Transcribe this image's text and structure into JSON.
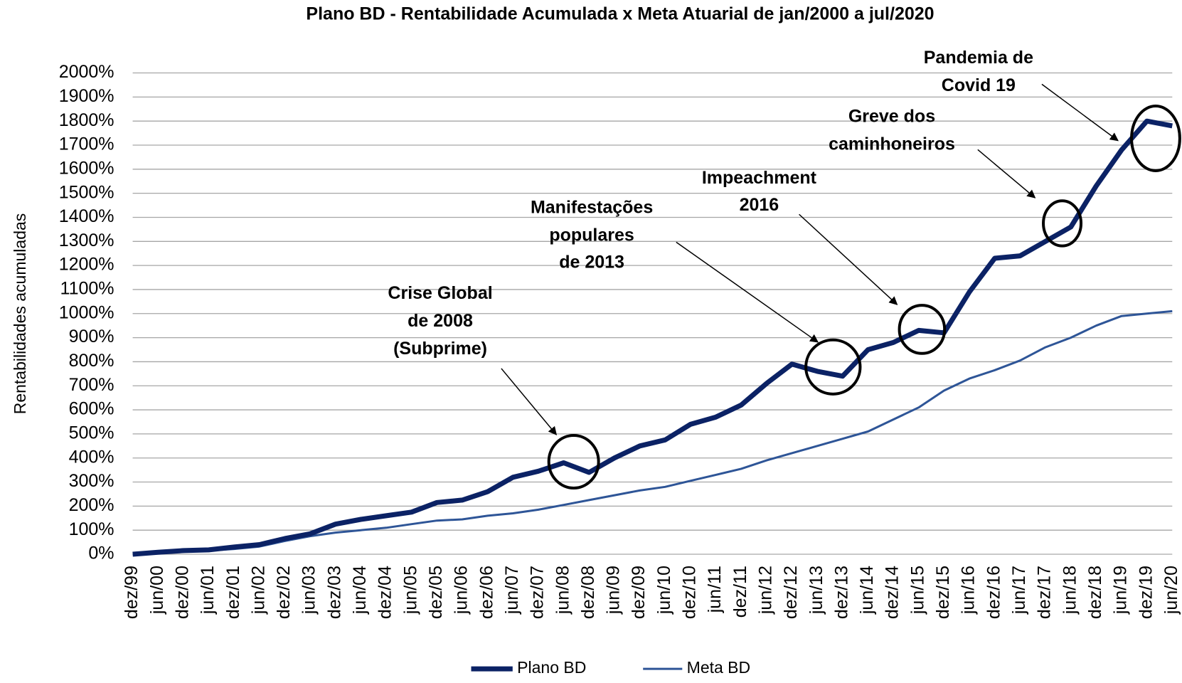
{
  "chart_data": {
    "type": "line",
    "title": "Plano BD - Rentabilidade Acumulada x Meta Atuarial de jan/2000 a jul/2020",
    "y_label": "Rentabilidades acumuladas",
    "categories": [
      "dez/99",
      "jun/00",
      "dez/00",
      "jun/01",
      "dez/01",
      "jun/02",
      "dez/02",
      "jun/03",
      "dez/03",
      "jun/04",
      "dez/04",
      "jun/05",
      "dez/05",
      "jun/06",
      "dez/06",
      "jun/07",
      "dez/07",
      "jun/08",
      "dez/08",
      "jun/09",
      "dez/09",
      "jun/10",
      "dez/10",
      "jun/11",
      "dez/11",
      "jun/12",
      "dez/12",
      "jun/13",
      "dez/13",
      "jun/14",
      "dez/14",
      "jun/15",
      "dez/15",
      "jun/16",
      "dez/16",
      "jun/17",
      "dez/17",
      "jun/18",
      "dez/18",
      "jun/19",
      "dez/19",
      "jun/20"
    ],
    "series": [
      {
        "name": "Plano BD",
        "color": "#0b2265",
        "width": 7,
        "values": [
          0,
          8,
          15,
          18,
          30,
          40,
          65,
          85,
          125,
          145,
          160,
          175,
          215,
          225,
          260,
          320,
          345,
          380,
          340,
          400,
          450,
          475,
          540,
          570,
          620,
          710,
          790,
          760,
          740,
          850,
          880,
          930,
          920,
          1090,
          1230,
          1240,
          1300,
          1360,
          1530,
          1680,
          1800,
          1780
        ]
      },
      {
        "name": "Meta BD",
        "color": "#2e5597",
        "width": 3,
        "values": [
          0,
          5,
          10,
          15,
          22,
          32,
          55,
          75,
          90,
          100,
          110,
          125,
          140,
          145,
          160,
          170,
          185,
          205,
          225,
          245,
          265,
          280,
          305,
          330,
          355,
          390,
          420,
          450,
          480,
          510,
          560,
          610,
          680,
          730,
          765,
          805,
          860,
          900,
          950,
          990,
          1000,
          1010
        ]
      }
    ],
    "ylim": [
      0,
      2000
    ],
    "yticks": [
      {
        "value": 0,
        "label": "0%"
      },
      {
        "value": 100,
        "label": "100%"
      },
      {
        "value": 200,
        "label": "200%"
      },
      {
        "value": 300,
        "label": "300%"
      },
      {
        "value": 400,
        "label": "400%"
      },
      {
        "value": 500,
        "label": "500%"
      },
      {
        "value": 600,
        "label": "600%"
      },
      {
        "value": 700,
        "label": "700%"
      },
      {
        "value": 800,
        "label": "800%"
      },
      {
        "value": 900,
        "label": "900%"
      },
      {
        "value": 1000,
        "label": "1000%"
      },
      {
        "value": 1100,
        "label": "1100%"
      },
      {
        "value": 1200,
        "label": "1200%"
      },
      {
        "value": 1300,
        "label": "1300%"
      },
      {
        "value": 1400,
        "label": "1400%"
      },
      {
        "value": 1500,
        "label": "1500%"
      },
      {
        "value": 1600,
        "label": "1600%"
      },
      {
        "value": 1700,
        "label": "1700%"
      },
      {
        "value": 1800,
        "label": "1800%"
      },
      {
        "value": 1900,
        "label": "1900%"
      },
      {
        "value": 2000,
        "label": "2000%"
      }
    ],
    "grid": true,
    "legend": "bottom",
    "annotations": [
      {
        "lines": [
          "Crise Global",
          "de 2008",
          "(Subprime)"
        ]
      },
      {
        "lines": [
          "Manifestações",
          "populares",
          "de 2013"
        ]
      },
      {
        "lines": [
          "Impeachment",
          "2016"
        ]
      },
      {
        "lines": [
          "Greve dos",
          "caminhoneiros"
        ]
      },
      {
        "lines": [
          "Pandemia de",
          "Covid 19"
        ]
      }
    ]
  }
}
